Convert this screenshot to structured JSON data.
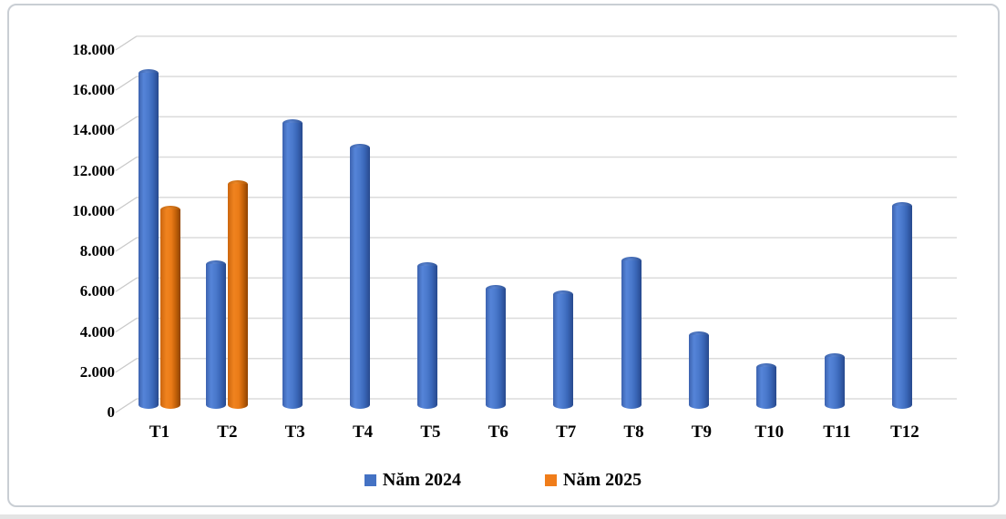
{
  "page": {
    "background": "#ffffff",
    "frame_border_color": "#c9ced4",
    "gridline_color": "#dbdbdb",
    "text_color": "#000000"
  },
  "chart_data": {
    "type": "bar",
    "style": "3d-cylinder",
    "title": "",
    "xlabel": "",
    "ylabel": "",
    "categories": [
      "T1",
      "T2",
      "T3",
      "T4",
      "T5",
      "T6",
      "T7",
      "T8",
      "T9",
      "T10",
      "T11",
      "T12"
    ],
    "series": [
      {
        "name": "Năm 2024",
        "color": "#4472C4",
        "values": [
          16500,
          7000,
          14000,
          12800,
          6900,
          5800,
          5500,
          7200,
          3500,
          1900,
          2400,
          9900
        ]
      },
      {
        "name": "Năm 2025",
        "color": "#F07D1A",
        "values": [
          9700,
          11000,
          null,
          null,
          null,
          null,
          null,
          null,
          null,
          null,
          null,
          null
        ]
      }
    ],
    "y_axis": {
      "min": 0,
      "max": 18000,
      "step": 2000,
      "tick_labels": [
        "0",
        "2.000",
        "4.000",
        "6.000",
        "8.000",
        "10.000",
        "12.000",
        "14.000",
        "16.000",
        "18.000"
      ]
    },
    "grid": true,
    "legend_position": "bottom"
  }
}
